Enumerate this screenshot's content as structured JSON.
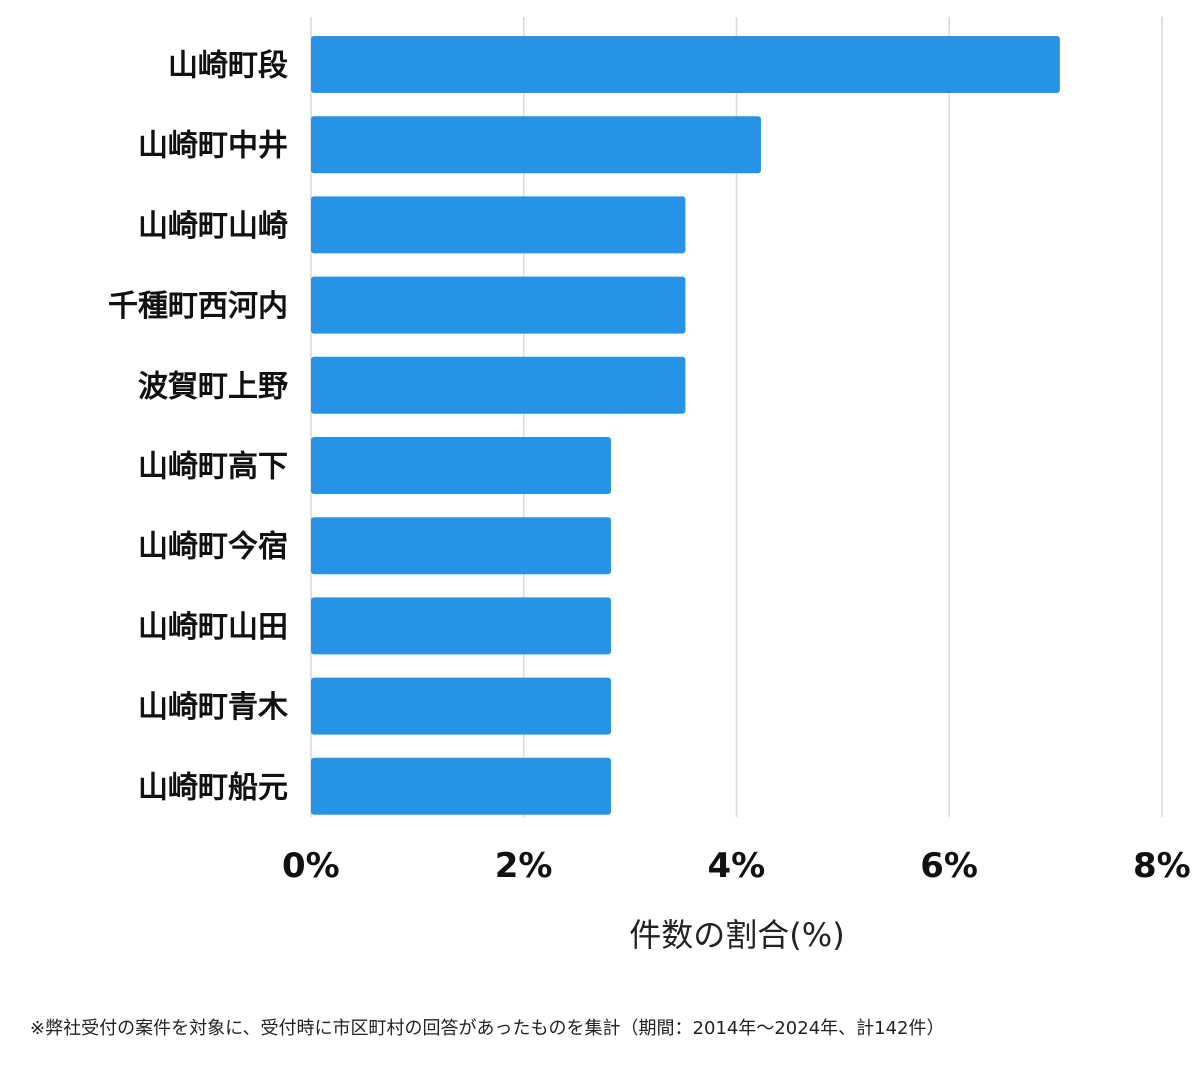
{
  "chart_data": {
    "type": "bar",
    "orientation": "horizontal",
    "categories": [
      "山崎町段",
      "山崎町中井",
      "山崎町山崎",
      "千種町西河内",
      "波賀町上野",
      "山崎町高下",
      "山崎町今宿",
      "山崎町山田",
      "山崎町青木",
      "山崎町船元"
    ],
    "values": [
      7.04,
      4.23,
      3.52,
      3.52,
      3.52,
      2.82,
      2.82,
      2.82,
      2.82,
      2.82
    ],
    "xlim": [
      0,
      8
    ],
    "xticks": [
      0,
      2,
      4,
      6,
      8
    ],
    "tick_labels": [
      "0%",
      "2%",
      "4%",
      "6%",
      "8%"
    ],
    "xlabel": "件数の割合(%)",
    "ylabel": "",
    "grid": "vertical",
    "bar_color": "#2793e6",
    "grid_color": "#d9d9d9"
  },
  "footnote": "※弊社受付の案件を対象に、受付時に市区町村の回答があったものを集計（期間：2014年～2024年、計142件）"
}
